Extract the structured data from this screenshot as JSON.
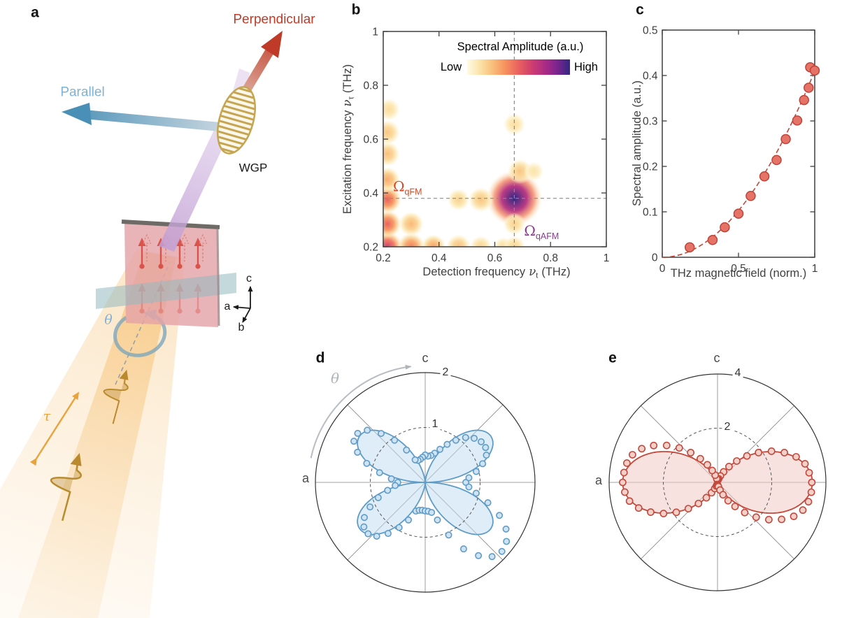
{
  "figure": {
    "panels": [
      "a",
      "b",
      "c",
      "d",
      "e"
    ]
  },
  "panel_a": {
    "labels": {
      "perpendicular": "Perpendicular",
      "parallel": "Parallel",
      "wgp": "WGP",
      "theta": "θ",
      "tau": "τ",
      "axis_a": "a",
      "axis_b": "b",
      "axis_c": "c"
    },
    "colors": {
      "perpendicular_red": "#bf3b28",
      "parallel_blue": "#7fb3d2",
      "beam_orange": "#f3a83b",
      "pulse_tan": "#b98b2e",
      "purple_beam": "#c2a0d4",
      "sample_pink": "#e4a4a8",
      "spin_red": "#d9534a",
      "plane_teal": "#94babf",
      "wgp_tan": "#c6a551",
      "theta_blue": "#87b1cc"
    }
  },
  "chart_data": [
    {
      "panel": "b",
      "type": "heatmap",
      "colorbar": {
        "title": "Spectral Amplitude (a.u.)",
        "low": "Low",
        "high": "High",
        "colors": [
          "#fffbe6",
          "#fbe3a8",
          "#f9bd79",
          "#f68f5d",
          "#e9615f",
          "#cf3f6e",
          "#ad2c84",
          "#7c248e",
          "#312783"
        ]
      },
      "xlabel": {
        "prefix": "Detection frequency",
        "symbol": "ν",
        "sub": "t",
        "suffix": "(THz)"
      },
      "ylabel": {
        "prefix": "Excitation frequency",
        "symbol": "ν",
        "sub": "τ",
        "suffix": "(THz)"
      },
      "xlim": [
        0.2,
        1
      ],
      "ylim": [
        0.2,
        1
      ],
      "xticks": [
        0.2,
        0.4,
        0.6,
        0.8,
        1
      ],
      "yticks": [
        0.2,
        0.4,
        0.6,
        0.8,
        1
      ],
      "crosshair": {
        "x": 0.67,
        "y": 0.38
      },
      "annotations": [
        {
          "symbol": "Ω",
          "sub": "qFM",
          "x": 0.235,
          "y": 0.425,
          "color": "#cf4a28"
        },
        {
          "symbol": "Ω",
          "sub": "qAFM",
          "x": 0.705,
          "y": 0.26,
          "color": "#8c3a94"
        }
      ],
      "peaks": [
        {
          "x": 0.67,
          "y": 0.38,
          "r": 0.1,
          "i": 1.0
        },
        {
          "x": 0.215,
          "y": 0.2,
          "r": 0.055,
          "i": 0.62
        },
        {
          "x": 0.215,
          "y": 0.285,
          "r": 0.05,
          "i": 0.5
        },
        {
          "x": 0.215,
          "y": 0.375,
          "r": 0.05,
          "i": 0.5
        },
        {
          "x": 0.215,
          "y": 0.45,
          "r": 0.045,
          "i": 0.3
        },
        {
          "x": 0.215,
          "y": 0.545,
          "r": 0.045,
          "i": 0.24
        },
        {
          "x": 0.215,
          "y": 0.625,
          "r": 0.045,
          "i": 0.22
        },
        {
          "x": 0.22,
          "y": 0.71,
          "r": 0.04,
          "i": 0.15
        },
        {
          "x": 0.3,
          "y": 0.2,
          "r": 0.05,
          "i": 0.42
        },
        {
          "x": 0.3,
          "y": 0.285,
          "r": 0.045,
          "i": 0.26
        },
        {
          "x": 0.38,
          "y": 0.2,
          "r": 0.045,
          "i": 0.32
        },
        {
          "x": 0.47,
          "y": 0.2,
          "r": 0.045,
          "i": 0.24
        },
        {
          "x": 0.55,
          "y": 0.2,
          "r": 0.04,
          "i": 0.18
        },
        {
          "x": 0.47,
          "y": 0.375,
          "r": 0.04,
          "i": 0.18
        },
        {
          "x": 0.55,
          "y": 0.375,
          "r": 0.045,
          "i": 0.22
        },
        {
          "x": 0.63,
          "y": 0.2,
          "r": 0.035,
          "i": 0.15
        },
        {
          "x": 0.67,
          "y": 0.2,
          "r": 0.04,
          "i": 0.18
        },
        {
          "x": 0.67,
          "y": 0.285,
          "r": 0.04,
          "i": 0.18
        },
        {
          "x": 0.69,
          "y": 0.48,
          "r": 0.045,
          "i": 0.22
        },
        {
          "x": 0.74,
          "y": 0.48,
          "r": 0.035,
          "i": 0.12
        },
        {
          "x": 0.67,
          "y": 0.655,
          "r": 0.04,
          "i": 0.14
        }
      ]
    },
    {
      "panel": "c",
      "type": "scatter",
      "xlabel": "THz magnetic field (norm.)",
      "ylabel": "Spectral amplitude (a.u.)",
      "xlim": [
        0,
        1
      ],
      "ylim": [
        0,
        0.5
      ],
      "xticks": [
        0,
        0.5,
        1
      ],
      "yticks": [
        0,
        0.1,
        0.2,
        0.3,
        0.4,
        0.5
      ],
      "points": [
        [
          0.18,
          0.022
        ],
        [
          0.33,
          0.038
        ],
        [
          0.41,
          0.066
        ],
        [
          0.5,
          0.096
        ],
        [
          0.58,
          0.135
        ],
        [
          0.67,
          0.178
        ],
        [
          0.75,
          0.214
        ],
        [
          0.81,
          0.26
        ],
        [
          0.885,
          0.301
        ],
        [
          0.93,
          0.346
        ],
        [
          0.96,
          0.373
        ],
        [
          0.97,
          0.418
        ],
        [
          1.0,
          0.411
        ]
      ],
      "fit": {
        "form": "y = A·x²",
        "A": 0.41,
        "style": "dashed"
      },
      "colors": {
        "marker_fill": "#e57368",
        "marker_edge": "#bf4437",
        "fit_line": "#c0453a"
      }
    },
    {
      "panel": "d",
      "type": "polar",
      "axis_top_label": "c",
      "axis_left_label": "a",
      "theta_label": "θ",
      "ring_labels": [
        "1",
        "2"
      ],
      "rings": [
        1,
        2
      ],
      "rmax": 2,
      "fit": {
        "form": "r = A·|sin θ|·cos²θ",
        "A": 3.8
      },
      "points": [
        [
          0,
          0.74
        ],
        [
          6,
          0.8
        ],
        [
          12,
          0.95
        ],
        [
          18,
          1.1
        ],
        [
          24,
          1.22
        ],
        [
          30,
          1.27
        ],
        [
          36,
          1.26
        ],
        [
          42,
          1.2
        ],
        [
          48,
          1.1
        ],
        [
          54,
          0.95
        ],
        [
          60,
          0.8
        ],
        [
          66,
          0.66
        ],
        [
          72,
          0.56
        ],
        [
          78,
          0.5
        ],
        [
          84,
          0.48
        ],
        [
          90,
          0.5
        ],
        [
          96,
          0.46
        ],
        [
          102,
          0.43
        ],
        [
          108,
          0.42
        ],
        [
          114,
          0.45
        ],
        [
          120,
          0.68
        ],
        [
          126,
          0.95
        ],
        [
          132,
          1.2
        ],
        [
          138,
          1.42
        ],
        [
          144,
          1.52
        ],
        [
          150,
          1.5
        ],
        [
          156,
          1.35
        ],
        [
          162,
          1.12
        ],
        [
          168,
          0.85
        ],
        [
          174,
          0.62
        ],
        [
          180,
          0.5
        ],
        [
          186,
          0.55
        ],
        [
          192,
          0.7
        ],
        [
          198,
          0.9
        ],
        [
          204,
          1.1
        ],
        [
          210,
          1.28
        ],
        [
          216,
          1.38
        ],
        [
          222,
          1.4
        ],
        [
          228,
          1.32
        ],
        [
          234,
          1.15
        ],
        [
          240,
          0.95
        ],
        [
          246,
          0.75
        ],
        [
          252,
          0.55
        ],
        [
          258,
          0.52
        ],
        [
          264,
          0.51
        ],
        [
          270,
          0.52
        ],
        [
          276,
          0.53
        ],
        [
          282,
          0.56
        ],
        [
          288,
          0.72
        ],
        [
          294,
          1.05
        ],
        [
          300,
          1.4
        ],
        [
          306,
          1.65
        ],
        [
          312,
          1.82
        ],
        [
          318,
          1.88
        ],
        [
          324,
          1.83
        ],
        [
          330,
          1.7
        ],
        [
          336,
          1.48
        ],
        [
          342,
          1.2
        ],
        [
          348,
          0.95
        ],
        [
          354,
          0.8
        ]
      ],
      "colors": {
        "curve": "#5e9cc8",
        "fill": "rgba(189,219,240,0.5)",
        "marker_fill": "#cfe3f3"
      }
    },
    {
      "panel": "e",
      "type": "polar",
      "axis_top_label": "c",
      "axis_left_label": "a",
      "ring_labels": [
        "2",
        "4"
      ],
      "rings": [
        2,
        4
      ],
      "rmax": 4,
      "fit": {
        "form": "r = A·|cos θ|³",
        "A": 3.5
      },
      "points": [
        [
          0,
          3.48
        ],
        [
          6,
          3.4
        ],
        [
          12,
          3.3
        ],
        [
          18,
          3.05
        ],
        [
          24,
          2.7
        ],
        [
          30,
          2.3
        ],
        [
          36,
          1.87
        ],
        [
          42,
          1.46
        ],
        [
          48,
          1.06
        ],
        [
          54,
          0.72
        ],
        [
          60,
          0.45
        ],
        [
          66,
          0.26
        ],
        [
          72,
          0.14
        ],
        [
          78,
          0.1
        ],
        [
          84,
          0.08
        ],
        [
          90,
          0.1
        ],
        [
          96,
          0.1
        ],
        [
          102,
          0.14
        ],
        [
          108,
          0.28
        ],
        [
          114,
          0.48
        ],
        [
          120,
          0.75
        ],
        [
          126,
          1.08
        ],
        [
          132,
          1.48
        ],
        [
          138,
          1.9
        ],
        [
          144,
          2.32
        ],
        [
          150,
          2.72
        ],
        [
          156,
          3.06
        ],
        [
          162,
          3.3
        ],
        [
          168,
          3.42
        ],
        [
          174,
          3.47
        ],
        [
          180,
          3.5
        ],
        [
          186,
          3.44
        ],
        [
          192,
          3.32
        ],
        [
          198,
          3.06
        ],
        [
          204,
          2.7
        ],
        [
          210,
          2.3
        ],
        [
          216,
          1.88
        ],
        [
          222,
          1.45
        ],
        [
          228,
          1.05
        ],
        [
          234,
          0.7
        ],
        [
          240,
          0.44
        ],
        [
          246,
          0.25
        ],
        [
          252,
          0.14
        ],
        [
          258,
          0.09
        ],
        [
          264,
          0.08
        ],
        [
          270,
          0.1
        ],
        [
          276,
          0.12
        ],
        [
          282,
          0.16
        ],
        [
          288,
          0.3
        ],
        [
          294,
          0.5
        ],
        [
          300,
          0.78
        ],
        [
          306,
          1.1
        ],
        [
          312,
          1.5
        ],
        [
          318,
          1.92
        ],
        [
          324,
          2.34
        ],
        [
          330,
          2.73
        ],
        [
          336,
          3.08
        ],
        [
          342,
          3.31
        ],
        [
          348,
          3.43
        ],
        [
          354,
          3.48
        ]
      ],
      "colors": {
        "curve": "#c3493b",
        "fill": "rgba(242,203,198,0.55)",
        "marker_fill": "#f4d0ca"
      }
    }
  ]
}
